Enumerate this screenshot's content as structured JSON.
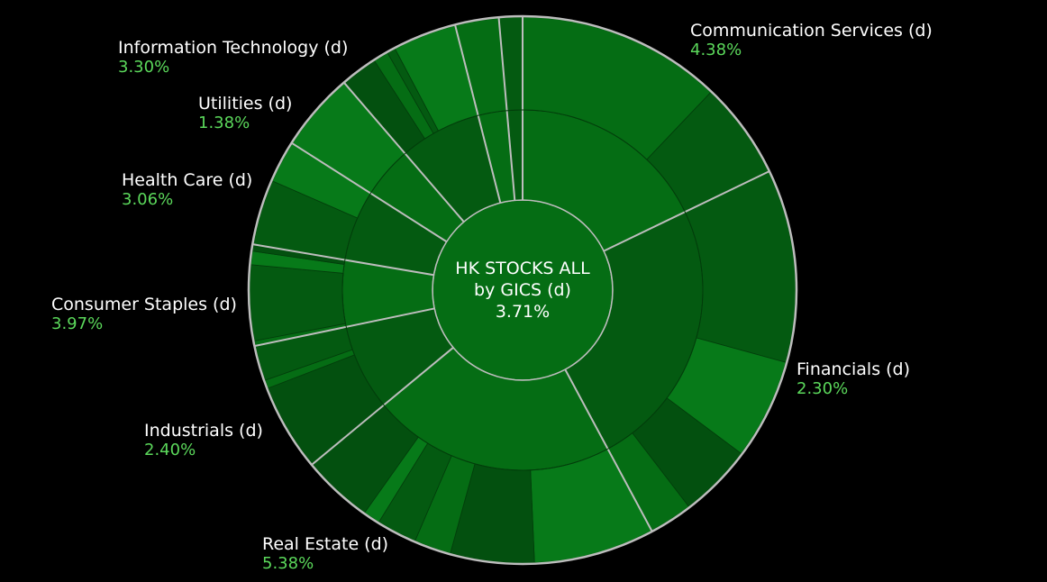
{
  "colors": {
    "background": "#000000",
    "label_text": "#ffffff",
    "percent_text": "#5bd85b",
    "separator": "#bdbdbd",
    "shades": [
      "#056d14",
      "#045a11",
      "#077a19",
      "#03500f"
    ]
  },
  "center": {
    "line1": "HK STOCKS ALL",
    "line2": "by GICS (d)",
    "value": "3.71%"
  },
  "chart_data": {
    "type": "sunburst",
    "title": "HK STOCKS ALL by GICS (d)",
    "center_value": "3.71%",
    "levels": [
      "Sector",
      "Industry Group",
      "Industry"
    ],
    "sectors": [
      {
        "name": "Communication Services (d)",
        "change": "4.38%",
        "weight": 18.0,
        "children": [
          12.2,
          5.8
        ]
      },
      {
        "name": "Financials (d)",
        "change": "2.30%",
        "weight": 24.5,
        "children": [
          11.5,
          6.0,
          4.4,
          2.6
        ]
      },
      {
        "name": "Real Estate (d)",
        "change": "5.38%",
        "weight": 22.0,
        "children": [
          7.2,
          5.0,
          2.2,
          2.4,
          1.0,
          4.2
        ]
      },
      {
        "name": "Industrials (d)",
        "change": "2.40%",
        "weight": 7.8,
        "children": [
          5.2,
          0.5,
          2.1
        ]
      },
      {
        "name": "Consumer Staples (d)",
        "change": "3.97%",
        "weight": 6.0,
        "children": [
          0.3,
          4.5,
          0.8,
          0.4
        ]
      },
      {
        "name": "Health Care (d)",
        "change": "3.06%",
        "weight": 6.4,
        "children": [
          3.9,
          2.5
        ]
      },
      {
        "name": "Utilities (d)",
        "change": "1.38%",
        "weight": 4.7,
        "children": [
          4.7
        ]
      },
      {
        "name": "Information Technology (d)",
        "change": "3.30%",
        "weight": 7.4,
        "children": [
          2.2,
          0.9,
          0.5,
          3.8
        ]
      },
      {
        "name": "",
        "change": "",
        "weight": 2.6,
        "children": [
          2.6
        ]
      },
      {
        "name": "",
        "change": "",
        "weight": 1.4,
        "children": [
          1.4
        ]
      }
    ]
  }
}
